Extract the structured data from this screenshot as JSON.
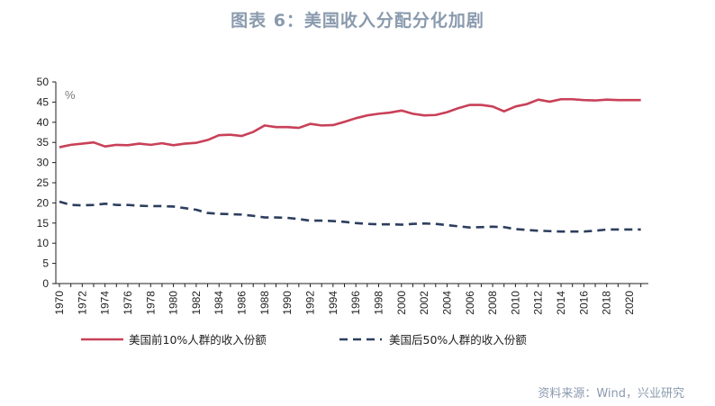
{
  "title": "图表 6：美国收入分配分化加剧",
  "source": "资料来源：Wind，兴业研究",
  "chart_data": {
    "type": "line",
    "x": [
      1970,
      1971,
      1972,
      1973,
      1974,
      1975,
      1976,
      1977,
      1978,
      1979,
      1980,
      1981,
      1982,
      1983,
      1984,
      1985,
      1986,
      1987,
      1988,
      1989,
      1990,
      1991,
      1992,
      1993,
      1994,
      1995,
      1996,
      1997,
      1998,
      1999,
      2000,
      2001,
      2002,
      2003,
      2004,
      2005,
      2006,
      2007,
      2008,
      2009,
      2010,
      2011,
      2012,
      2013,
      2014,
      2015,
      2016,
      2017,
      2018,
      2019,
      2020,
      2021
    ],
    "x_tick_labels": [
      "1970",
      "1972",
      "1974",
      "1976",
      "1978",
      "1980",
      "1982",
      "1984",
      "1986",
      "1988",
      "1990",
      "1992",
      "1994",
      "1996",
      "1998",
      "2000",
      "2002",
      "2004",
      "2006",
      "2008",
      "2010",
      "2012",
      "2014",
      "2016",
      "2018",
      "2020"
    ],
    "y_tick_labels": [
      "0",
      "5",
      "10",
      "15",
      "20",
      "25",
      "30",
      "35",
      "40",
      "45",
      "50"
    ],
    "ylim": [
      0,
      50
    ],
    "unit_label": "%",
    "grid": false,
    "legend_position": "bottom",
    "series": [
      {
        "name": "美国前10%人群的收入份额",
        "color": "#c94058",
        "style": "solid",
        "values": [
          33.8,
          34.4,
          34.7,
          35.0,
          34.0,
          34.4,
          34.3,
          34.7,
          34.4,
          34.8,
          34.3,
          34.7,
          34.9,
          35.6,
          36.8,
          36.9,
          36.6,
          37.6,
          39.2,
          38.8,
          38.8,
          38.6,
          39.6,
          39.2,
          39.3,
          40.1,
          41.0,
          41.7,
          42.1,
          42.4,
          42.9,
          42.1,
          41.7,
          41.8,
          42.5,
          43.5,
          44.3,
          44.3,
          43.9,
          42.7,
          43.9,
          44.5,
          45.6,
          45.1,
          45.7,
          45.7,
          45.5,
          45.4,
          45.6,
          45.5,
          45.5,
          45.5
        ]
      },
      {
        "name": "美国后50%人群的收入份额",
        "color": "#2c3e5e",
        "style": "dashed",
        "values": [
          20.3,
          19.5,
          19.4,
          19.5,
          19.8,
          19.5,
          19.5,
          19.3,
          19.2,
          19.2,
          19.1,
          18.7,
          18.3,
          17.5,
          17.3,
          17.2,
          17.1,
          16.8,
          16.4,
          16.4,
          16.3,
          16.0,
          15.6,
          15.6,
          15.5,
          15.3,
          15.0,
          14.8,
          14.7,
          14.7,
          14.6,
          14.8,
          14.9,
          14.8,
          14.5,
          14.2,
          13.9,
          14.0,
          14.1,
          14.0,
          13.5,
          13.3,
          13.1,
          13.0,
          12.9,
          12.9,
          12.9,
          13.1,
          13.4,
          13.4,
          13.4,
          13.4
        ]
      }
    ]
  }
}
